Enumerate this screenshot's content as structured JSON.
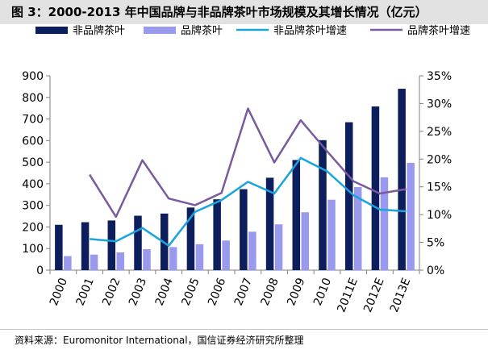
{
  "title": "图 3：2000-2013 年中国品牌与非品牌茶叶市场规模及其增长情况（亿元）",
  "source": "资料来源：Euromonitor International，国信证券经济研究所整理",
  "chart_data": {
    "type": "bar",
    "categories": [
      "2000",
      "2001",
      "2002",
      "2003",
      "2004",
      "2005",
      "2006",
      "2007",
      "2008",
      "2009",
      "2010",
      "2011E",
      "2012E",
      "2013E"
    ],
    "series": [
      {
        "name": "非品牌茶叶",
        "type": "bar",
        "axis": "left",
        "color": "#0c1f5c",
        "values": [
          210,
          222,
          230,
          252,
          262,
          290,
          328,
          375,
          428,
          510,
          602,
          685,
          758,
          840
        ]
      },
      {
        "name": "品牌茶叶",
        "type": "bar",
        "axis": "left",
        "color": "#9999ee",
        "values": [
          65,
          72,
          82,
          97,
          107,
          120,
          137,
          178,
          212,
          268,
          326,
          385,
          430,
          497
        ]
      },
      {
        "name": "非品牌茶叶增速",
        "type": "line",
        "axis": "right",
        "color": "#1aa3dd",
        "values": [
          null,
          5.6,
          5.2,
          7.6,
          4.4,
          10.5,
          12.6,
          15.9,
          13.8,
          20.2,
          17.8,
          13.5,
          10.9,
          10.6
        ]
      },
      {
        "name": "品牌茶叶增速",
        "type": "line",
        "axis": "right",
        "color": "#7a5a9c",
        "values": [
          null,
          17.2,
          9.6,
          19.8,
          12.9,
          11.7,
          13.9,
          29.1,
          19.4,
          27.0,
          21.4,
          16.0,
          13.8,
          14.6
        ]
      }
    ],
    "y_left": {
      "min": 0,
      "max": 900,
      "ticks": [
        0,
        100,
        200,
        300,
        400,
        500,
        600,
        700,
        800,
        900
      ]
    },
    "y_right": {
      "min": 0,
      "max": 35,
      "ticks": [
        "0%",
        "5%",
        "10%",
        "15%",
        "20%",
        "25%",
        "30%",
        "35%"
      ]
    },
    "legend_position": "top",
    "grid": false
  }
}
